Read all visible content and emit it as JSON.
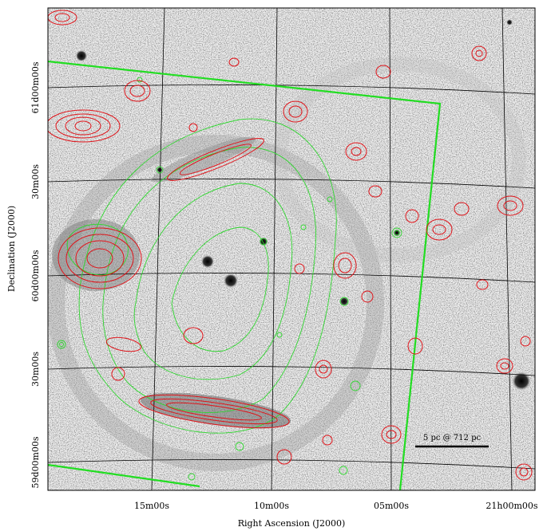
{
  "figure": {
    "x_axis_label": "Right Ascension (J2000)",
    "y_axis_label": "Declination (J2000)",
    "x_ticks": [
      "15m00s",
      "10m00s",
      "05m00s",
      "21h00m00s"
    ],
    "y_ticks": [
      "61d00m00s",
      "30m00s",
      "60d00m00s",
      "30m00s",
      "59d00m00s"
    ],
    "scale_bar_label": "5 pc @ 712 pc",
    "colors": {
      "background": "#e6e6e6",
      "contour_red": "#e0141a",
      "contour_green": "#2fd62f",
      "survey_boundary": "#22dd22",
      "grid": "#000000"
    }
  }
}
